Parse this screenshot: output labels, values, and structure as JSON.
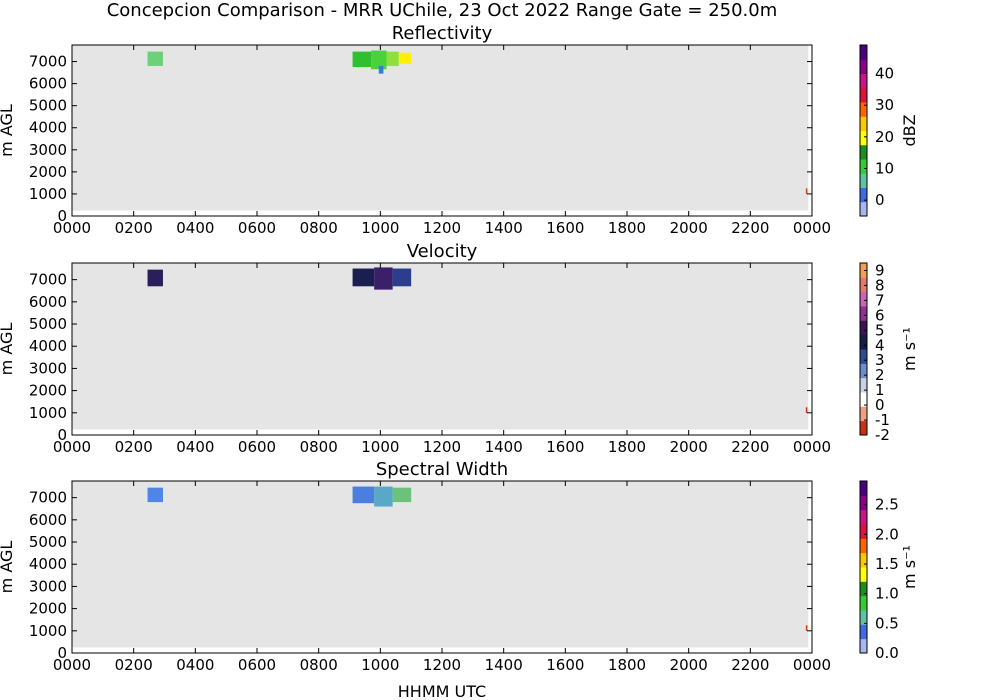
{
  "figure": {
    "title": "Concepcion Comparison - MRR UChile, 23 Oct 2022 Range Gate = 250.0m",
    "xlabel": "HHMM UTC"
  },
  "chart_data": [
    {
      "type": "heatmap",
      "title": "Reflectivity",
      "ylabel": "m AGL",
      "xlim": [
        0,
        24
      ],
      "ylim": [
        0,
        7750
      ],
      "x_ticks": [
        "0000",
        "0200",
        "0400",
        "0600",
        "0800",
        "1000",
        "1200",
        "1400",
        "1600",
        "1800",
        "2000",
        "2200",
        "0000"
      ],
      "y_ticks": [
        0,
        1000,
        2000,
        3000,
        4000,
        5000,
        6000,
        7000
      ],
      "colorbar": {
        "label": "dBZ",
        "range": [
          -5,
          49
        ],
        "ticks": [
          "0",
          "10",
          "20",
          "30",
          "40"
        ],
        "tick_values": [
          0,
          10,
          20,
          30,
          40
        ],
        "colors": [
          "#a9b6f0",
          "#4169e1",
          "#5fc3a0",
          "#32cd32",
          "#1e8c1e",
          "#ffff00",
          "#ffc800",
          "#ff6400",
          "#dc143c",
          "#c71585",
          "#8b008b",
          "#4b0082"
        ]
      },
      "echo_patches": [
        {
          "t0": 2.45,
          "t1": 2.95,
          "z0": 6800,
          "z1": 7450,
          "color": "#6fd07a"
        },
        {
          "t0": 9.1,
          "t1": 9.7,
          "z0": 6750,
          "z1": 7450,
          "color": "#2fbf2f"
        },
        {
          "t0": 9.7,
          "t1": 10.2,
          "z0": 6650,
          "z1": 7500,
          "color": "#49d23c"
        },
        {
          "t0": 10.2,
          "t1": 10.6,
          "z0": 6800,
          "z1": 7450,
          "color": "#8fe03c"
        },
        {
          "t0": 10.6,
          "t1": 11.0,
          "z0": 6900,
          "z1": 7400,
          "color": "#fff000"
        },
        {
          "t0": 9.95,
          "t1": 10.1,
          "z0": 6450,
          "z1": 6800,
          "color": "#3a7bd5"
        },
        {
          "t0": 23.8,
          "t1": 23.85,
          "z0": 1000,
          "z1": 1250,
          "color": "#dc3c14"
        }
      ]
    },
    {
      "type": "heatmap",
      "title": "Velocity",
      "ylabel": "m AGL",
      "xlim": [
        0,
        24
      ],
      "ylim": [
        0,
        7750
      ],
      "x_ticks": [
        "0000",
        "0200",
        "0400",
        "0600",
        "0800",
        "1000",
        "1200",
        "1400",
        "1600",
        "1800",
        "2000",
        "2200",
        "0000"
      ],
      "y_ticks": [
        0,
        1000,
        2000,
        3000,
        4000,
        5000,
        6000,
        7000
      ],
      "colorbar": {
        "label": "m s⁻¹",
        "range": [
          -2,
          9.5
        ],
        "ticks": [
          "-2",
          "-1",
          "0",
          "1",
          "2",
          "3",
          "4",
          "5",
          "6",
          "7",
          "8",
          "9"
        ],
        "tick_values": [
          -2,
          -1,
          0,
          1,
          2,
          3,
          4,
          5,
          6,
          7,
          8,
          9
        ],
        "colors": [
          "#c83214",
          "#f0a080",
          "#ffffff",
          "#c8d2e6",
          "#6e8cc8",
          "#2d4b91",
          "#141e46",
          "#3c1450",
          "#8c3296",
          "#c864b4",
          "#e6786e",
          "#f0a050"
        ]
      },
      "echo_patches": [
        {
          "t0": 2.45,
          "t1": 2.95,
          "z0": 6700,
          "z1": 7450,
          "color": "#2a1f5a"
        },
        {
          "t0": 9.1,
          "t1": 9.8,
          "z0": 6700,
          "z1": 7500,
          "color": "#1a1f4f"
        },
        {
          "t0": 9.8,
          "t1": 10.4,
          "z0": 6550,
          "z1": 7550,
          "color": "#3a2068"
        },
        {
          "t0": 10.4,
          "t1": 11.0,
          "z0": 6700,
          "z1": 7500,
          "color": "#2b3d8c"
        },
        {
          "t0": 23.8,
          "t1": 23.85,
          "z0": 1000,
          "z1": 1250,
          "color": "#c83214"
        }
      ]
    },
    {
      "type": "heatmap",
      "title": "Spectral Width",
      "ylabel": "m AGL",
      "xlim": [
        0,
        24
      ],
      "ylim": [
        0,
        7750
      ],
      "x_ticks": [
        "0000",
        "0200",
        "0400",
        "0600",
        "0800",
        "1000",
        "1200",
        "1400",
        "1600",
        "1800",
        "2000",
        "2200",
        "0000"
      ],
      "y_ticks": [
        0,
        1000,
        2000,
        3000,
        4000,
        5000,
        6000,
        7000
      ],
      "colorbar": {
        "label": "m s⁻¹",
        "range": [
          0,
          2.9
        ],
        "ticks": [
          "0.0",
          "0.5",
          "1.0",
          "1.5",
          "2.0",
          "2.5"
        ],
        "tick_values": [
          0,
          0.5,
          1.0,
          1.5,
          2.0,
          2.5
        ],
        "colors": [
          "#a9b6f0",
          "#4169e1",
          "#5fc3a0",
          "#32cd32",
          "#1e8c1e",
          "#ffff00",
          "#ffc800",
          "#ff6400",
          "#dc143c",
          "#c71585",
          "#8b008b",
          "#4b0082"
        ]
      },
      "echo_patches": [
        {
          "t0": 2.45,
          "t1": 2.95,
          "z0": 6800,
          "z1": 7450,
          "color": "#4f86e6"
        },
        {
          "t0": 9.1,
          "t1": 9.8,
          "z0": 6750,
          "z1": 7500,
          "color": "#4a7fe0"
        },
        {
          "t0": 9.8,
          "t1": 10.4,
          "z0": 6600,
          "z1": 7500,
          "color": "#5aa8c8"
        },
        {
          "t0": 10.4,
          "t1": 11.0,
          "z0": 6800,
          "z1": 7450,
          "color": "#6cc27a"
        },
        {
          "t0": 23.8,
          "t1": 23.85,
          "z0": 1000,
          "z1": 1250,
          "color": "#dc3c14"
        }
      ]
    }
  ]
}
